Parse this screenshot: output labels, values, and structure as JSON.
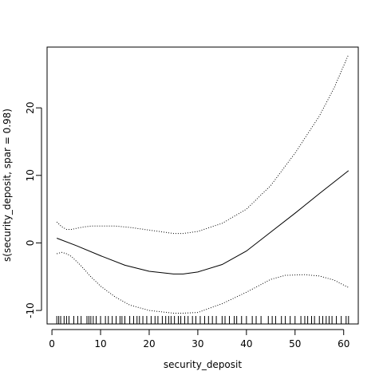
{
  "chart_data": {
    "type": "line",
    "title": "",
    "xlabel": "security_deposit",
    "ylabel": "s(security_deposit, spar = 0.98)",
    "xlim": [
      -1,
      63
    ],
    "ylim": [
      -12,
      29
    ],
    "xticks": [
      0,
      10,
      20,
      30,
      40,
      50,
      60
    ],
    "yticks": [
      -10,
      0,
      10,
      20
    ],
    "grid": false,
    "legend": "none",
    "series": [
      {
        "role": "fit",
        "line_style": "solid",
        "x": [
          1,
          5,
          10,
          15,
          20,
          25,
          27,
          30,
          35,
          40,
          45,
          50,
          55,
          61
        ],
        "y": [
          0.7,
          -0.4,
          -1.9,
          -3.3,
          -4.2,
          -4.6,
          -4.6,
          -4.3,
          -3.2,
          -1.2,
          1.6,
          4.4,
          7.3,
          10.7
        ]
      },
      {
        "role": "upper band",
        "line_style": "dotted",
        "x": [
          1,
          2,
          3,
          4,
          6,
          8,
          10,
          13,
          16,
          20,
          25,
          27,
          30,
          35,
          40,
          45,
          50,
          55,
          58,
          61
        ],
        "y": [
          3.1,
          2.4,
          2.0,
          2.0,
          2.3,
          2.5,
          2.5,
          2.5,
          2.3,
          1.9,
          1.4,
          1.4,
          1.7,
          2.9,
          5.0,
          8.5,
          13.3,
          18.8,
          22.9,
          27.9
        ]
      },
      {
        "role": "lower band",
        "line_style": "dotted",
        "x": [
          1,
          2,
          3,
          4,
          6,
          8,
          10,
          13,
          16,
          20,
          25,
          27,
          30,
          35,
          40,
          45,
          48,
          52,
          55,
          58,
          61
        ],
        "y": [
          -1.6,
          -1.4,
          -1.6,
          -2.0,
          -3.4,
          -5.0,
          -6.4,
          -8.0,
          -9.2,
          -10.0,
          -10.4,
          -10.4,
          -10.3,
          -9.0,
          -7.3,
          -5.4,
          -4.8,
          -4.7,
          -4.9,
          -5.5,
          -6.6
        ]
      }
    ],
    "rug": [
      1,
      1.4,
      1.8,
      2.5,
      3,
      3.5,
      4.5,
      5.3,
      6,
      7.2,
      7.6,
      8,
      8.5,
      9.1,
      10,
      11,
      11.6,
      12.4,
      13.2,
      14,
      14.4,
      15,
      16,
      16.8,
      17.5,
      18,
      18.7,
      19.5,
      20.4,
      21.2,
      21.8,
      22.7,
      23.4,
      24,
      24.5,
      25.2,
      26,
      26.5,
      27.3,
      28,
      28.9,
      29.6,
      30.5,
      31.4,
      32.2,
      33,
      33.8,
      35,
      35.6,
      36.5,
      37.5,
      38,
      39,
      40,
      41.2,
      42,
      43,
      44.5,
      45.3,
      46,
      47.2,
      48,
      49,
      50,
      51.2,
      52,
      52.6,
      53.4,
      54,
      55,
      55.7,
      56.4,
      57,
      57.6,
      58.5,
      59.5,
      60.5,
      61
    ]
  }
}
